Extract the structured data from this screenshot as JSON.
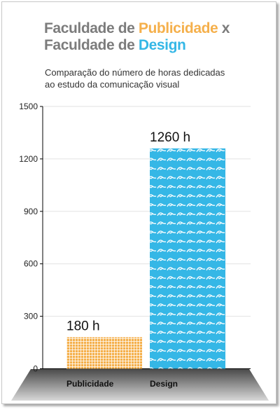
{
  "title": {
    "line1_part1": "Faculdade de ",
    "line1_highlight": "Publicidade",
    "line1_part2": " x",
    "line2_part1": "Faculdade de ",
    "line2_highlight": "Design"
  },
  "subtitle": {
    "line1": "Comparação do número de horas dedicadas",
    "line2": "ao estudo da comunicação visual"
  },
  "colors": {
    "title_gray": "#7c7c7c",
    "publicidade": "#f5b04c",
    "design": "#35b7e6",
    "floor": "#8a8a8a"
  },
  "chart_data": {
    "type": "bar",
    "categories": [
      "Publicidade",
      "Design"
    ],
    "values": [
      180,
      1260
    ],
    "data_labels": [
      "180 h",
      "1260 h"
    ],
    "ylim": [
      0,
      1500
    ],
    "yticks": [
      "0",
      "300",
      "600",
      "900",
      "1200",
      "1500"
    ],
    "grid": true,
    "bar_patterns": [
      "grid",
      "waves"
    ]
  }
}
